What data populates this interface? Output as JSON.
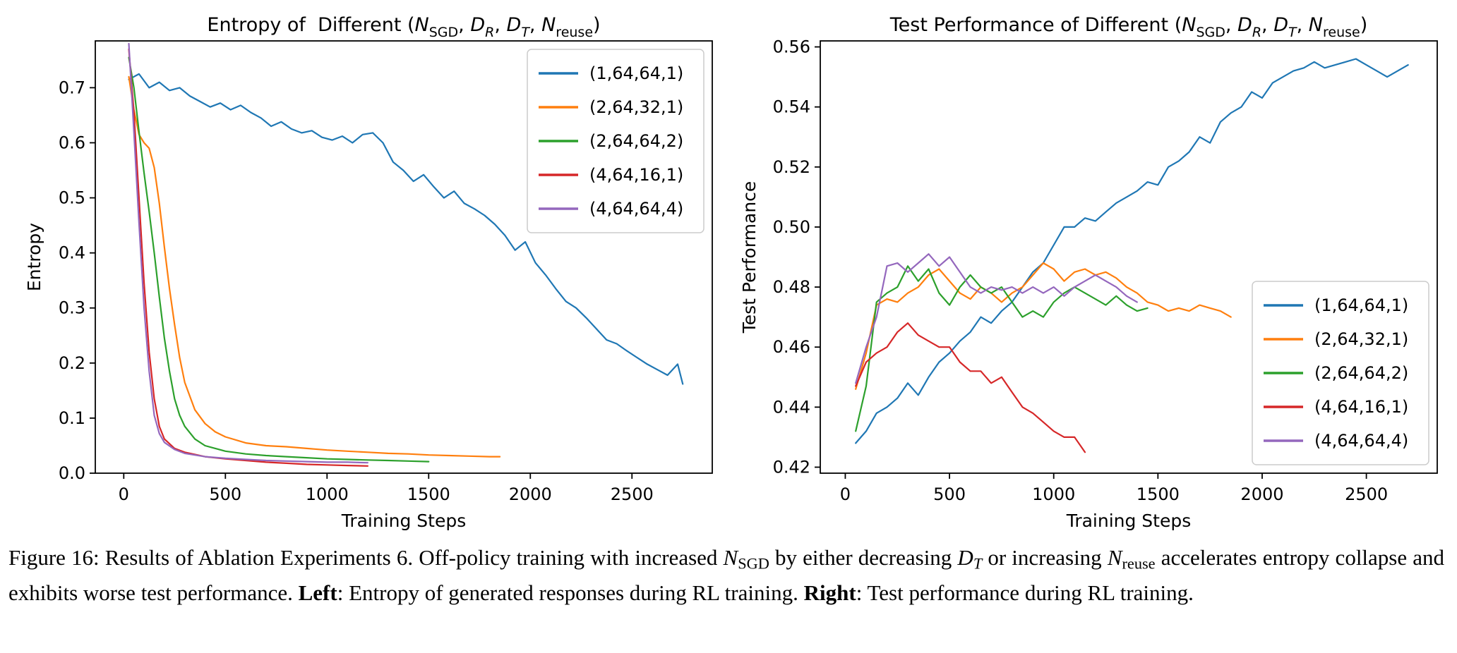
{
  "figure_caption": {
    "segments": [
      {
        "text": "Figure 16: Results of Ablation Experiments 6. Off-policy training with increased "
      },
      {
        "text": "N",
        "style": "italic"
      },
      {
        "text": "SGD",
        "style": "sub"
      },
      {
        "text": " by either decreasing "
      },
      {
        "text": "D",
        "style": "italic"
      },
      {
        "text": "T",
        "style": "italic-sub"
      },
      {
        "text": " or increasing "
      },
      {
        "text": "N",
        "style": "italic"
      },
      {
        "text": "reuse",
        "style": "sub"
      },
      {
        "text": " accelerates entropy collapse and exhibits worse test performance. "
      },
      {
        "text": "Left",
        "style": "bold"
      },
      {
        "text": ": Entropy of generated responses during RL training. "
      },
      {
        "text": "Right",
        "style": "bold"
      },
      {
        "text": ": Test performance during RL training."
      }
    ]
  },
  "chart_data": [
    {
      "type": "line",
      "title_segments": [
        {
          "text": "Entropy of  Different ("
        },
        {
          "text": "N",
          "style": "italic"
        },
        {
          "text": "SGD",
          "style": "sub"
        },
        {
          "text": ", "
        },
        {
          "text": "D",
          "style": "italic"
        },
        {
          "text": "R",
          "style": "italic-sub"
        },
        {
          "text": ", "
        },
        {
          "text": "D",
          "style": "italic"
        },
        {
          "text": "T",
          "style": "italic-sub"
        },
        {
          "text": ", "
        },
        {
          "text": "N",
          "style": "italic"
        },
        {
          "text": "reuse",
          "style": "sub"
        },
        {
          "text": ")"
        }
      ],
      "xlabel": "Training Steps",
      "ylabel": "Entropy",
      "xlim": [
        -140,
        2895
      ],
      "ylim": [
        0.0,
        0.785
      ],
      "xtick_values": [
        0,
        500,
        1000,
        1500,
        2000,
        2500
      ],
      "xtick_labels": [
        "0",
        "500",
        "1000",
        "1500",
        "2000",
        "2500"
      ],
      "ytick_values": [
        0.0,
        0.1,
        0.2,
        0.3,
        0.4,
        0.5,
        0.6,
        0.7
      ],
      "ytick_labels": [
        "0.0",
        "0.1",
        "0.2",
        "0.3",
        "0.4",
        "0.5",
        "0.6",
        "0.7"
      ],
      "legend_position": "upper-right",
      "series": [
        {
          "name": "(1,64,64,1)",
          "color": "#1f77b4",
          "x": [
            25,
            75,
            125,
            175,
            225,
            275,
            325,
            375,
            425,
            475,
            525,
            575,
            625,
            675,
            725,
            775,
            825,
            875,
            925,
            975,
            1025,
            1075,
            1125,
            1175,
            1225,
            1275,
            1325,
            1375,
            1425,
            1475,
            1525,
            1575,
            1625,
            1675,
            1725,
            1775,
            1825,
            1875,
            1925,
            1975,
            2025,
            2075,
            2125,
            2175,
            2225,
            2275,
            2325,
            2375,
            2425,
            2475,
            2525,
            2575,
            2625,
            2675,
            2725,
            2750
          ],
          "y": [
            0.715,
            0.725,
            0.7,
            0.71,
            0.695,
            0.7,
            0.685,
            0.675,
            0.665,
            0.672,
            0.66,
            0.668,
            0.655,
            0.645,
            0.63,
            0.638,
            0.625,
            0.618,
            0.622,
            0.61,
            0.605,
            0.612,
            0.6,
            0.615,
            0.618,
            0.6,
            0.565,
            0.55,
            0.53,
            0.542,
            0.52,
            0.5,
            0.512,
            0.49,
            0.48,
            0.468,
            0.452,
            0.432,
            0.405,
            0.42,
            0.382,
            0.36,
            0.335,
            0.312,
            0.3,
            0.282,
            0.262,
            0.242,
            0.235,
            0.222,
            0.21,
            0.198,
            0.188,
            0.178,
            0.198,
            0.162
          ]
        },
        {
          "name": "(2,64,32,1)",
          "color": "#ff7f0e",
          "x": [
            25,
            50,
            75,
            100,
            125,
            150,
            175,
            200,
            225,
            250,
            275,
            300,
            350,
            400,
            450,
            500,
            600,
            700,
            800,
            900,
            1000,
            1100,
            1200,
            1300,
            1400,
            1500,
            1600,
            1700,
            1800,
            1850
          ],
          "y": [
            0.72,
            0.66,
            0.615,
            0.6,
            0.59,
            0.555,
            0.49,
            0.41,
            0.335,
            0.27,
            0.21,
            0.165,
            0.115,
            0.09,
            0.075,
            0.066,
            0.055,
            0.05,
            0.048,
            0.045,
            0.042,
            0.04,
            0.038,
            0.036,
            0.035,
            0.033,
            0.032,
            0.031,
            0.03,
            0.03
          ]
        },
        {
          "name": "(2,64,64,2)",
          "color": "#2ca02c",
          "x": [
            25,
            50,
            75,
            100,
            125,
            150,
            175,
            200,
            225,
            250,
            275,
            300,
            350,
            400,
            500,
            600,
            700,
            800,
            900,
            1000,
            1100,
            1200,
            1300,
            1400,
            1500
          ],
          "y": [
            0.755,
            0.7,
            0.62,
            0.545,
            0.475,
            0.4,
            0.32,
            0.245,
            0.185,
            0.135,
            0.105,
            0.085,
            0.062,
            0.05,
            0.04,
            0.035,
            0.032,
            0.03,
            0.028,
            0.026,
            0.025,
            0.024,
            0.023,
            0.022,
            0.021
          ]
        },
        {
          "name": "(4,64,16,1)",
          "color": "#d62728",
          "x": [
            25,
            50,
            75,
            100,
            125,
            150,
            175,
            200,
            250,
            300,
            400,
            500,
            600,
            700,
            800,
            900,
            1000,
            1100,
            1200
          ],
          "y": [
            0.77,
            0.655,
            0.5,
            0.345,
            0.22,
            0.135,
            0.085,
            0.062,
            0.045,
            0.038,
            0.03,
            0.026,
            0.023,
            0.02,
            0.018,
            0.016,
            0.015,
            0.014,
            0.013
          ]
        },
        {
          "name": "(4,64,64,4)",
          "color": "#9467bd",
          "x": [
            25,
            50,
            75,
            100,
            125,
            150,
            175,
            200,
            250,
            300,
            400,
            500,
            600,
            700,
            800,
            900,
            1000,
            1100,
            1200
          ],
          "y": [
            0.78,
            0.62,
            0.455,
            0.3,
            0.185,
            0.105,
            0.072,
            0.056,
            0.043,
            0.036,
            0.03,
            0.027,
            0.025,
            0.023,
            0.022,
            0.021,
            0.02,
            0.02,
            0.019
          ]
        }
      ]
    },
    {
      "type": "line",
      "title_segments": [
        {
          "text": "Test Performance of Different ("
        },
        {
          "text": "N",
          "style": "italic"
        },
        {
          "text": "SGD",
          "style": "sub"
        },
        {
          "text": ", "
        },
        {
          "text": "D",
          "style": "italic"
        },
        {
          "text": "R",
          "style": "italic-sub"
        },
        {
          "text": ", "
        },
        {
          "text": "D",
          "style": "italic"
        },
        {
          "text": "T",
          "style": "italic-sub"
        },
        {
          "text": ", "
        },
        {
          "text": "N",
          "style": "italic"
        },
        {
          "text": "reuse",
          "style": "sub"
        },
        {
          "text": ")"
        }
      ],
      "xlabel": "Training Steps",
      "ylabel": "Test Performance",
      "xlim": [
        -120,
        2840
      ],
      "ylim": [
        0.418,
        0.562
      ],
      "xtick_values": [
        0,
        500,
        1000,
        1500,
        2000,
        2500
      ],
      "xtick_labels": [
        "0",
        "500",
        "1000",
        "1500",
        "2000",
        "2500"
      ],
      "ytick_values": [
        0.42,
        0.44,
        0.46,
        0.48,
        0.5,
        0.52,
        0.54,
        0.56
      ],
      "ytick_labels": [
        "0.42",
        "0.44",
        "0.46",
        "0.48",
        "0.50",
        "0.52",
        "0.54",
        "0.56"
      ],
      "legend_position": "lower-right",
      "series": [
        {
          "name": "(1,64,64,1)",
          "color": "#1f77b4",
          "x": [
            50,
            100,
            150,
            200,
            250,
            300,
            350,
            400,
            450,
            500,
            550,
            600,
            650,
            700,
            750,
            800,
            850,
            900,
            950,
            1000,
            1050,
            1100,
            1150,
            1200,
            1250,
            1300,
            1350,
            1400,
            1450,
            1500,
            1550,
            1600,
            1650,
            1700,
            1750,
            1800,
            1850,
            1900,
            1950,
            2000,
            2050,
            2100,
            2150,
            2200,
            2250,
            2300,
            2350,
            2400,
            2450,
            2500,
            2550,
            2600,
            2650,
            2700
          ],
          "y": [
            0.428,
            0.432,
            0.438,
            0.44,
            0.443,
            0.448,
            0.444,
            0.45,
            0.455,
            0.458,
            0.462,
            0.465,
            0.47,
            0.468,
            0.472,
            0.475,
            0.48,
            0.485,
            0.488,
            0.494,
            0.5,
            0.5,
            0.503,
            0.502,
            0.505,
            0.508,
            0.51,
            0.512,
            0.515,
            0.514,
            0.52,
            0.522,
            0.525,
            0.53,
            0.528,
            0.535,
            0.538,
            0.54,
            0.545,
            0.543,
            0.548,
            0.55,
            0.552,
            0.553,
            0.555,
            0.553,
            0.554,
            0.555,
            0.556,
            0.554,
            0.552,
            0.55,
            0.552,
            0.554
          ]
        },
        {
          "name": "(2,64,32,1)",
          "color": "#ff7f0e",
          "x": [
            50,
            100,
            150,
            200,
            250,
            300,
            350,
            400,
            450,
            500,
            550,
            600,
            650,
            700,
            750,
            800,
            850,
            900,
            950,
            1000,
            1050,
            1100,
            1150,
            1200,
            1250,
            1300,
            1350,
            1400,
            1450,
            1500,
            1550,
            1600,
            1650,
            1700,
            1750,
            1800,
            1850
          ],
          "y": [
            0.446,
            0.458,
            0.474,
            0.476,
            0.475,
            0.478,
            0.48,
            0.484,
            0.486,
            0.482,
            0.478,
            0.476,
            0.48,
            0.478,
            0.475,
            0.478,
            0.48,
            0.484,
            0.488,
            0.486,
            0.482,
            0.485,
            0.486,
            0.484,
            0.485,
            0.483,
            0.48,
            0.478,
            0.475,
            0.474,
            0.472,
            0.473,
            0.472,
            0.474,
            0.473,
            0.472,
            0.47
          ]
        },
        {
          "name": "(2,64,64,2)",
          "color": "#2ca02c",
          "x": [
            50,
            100,
            150,
            200,
            250,
            300,
            350,
            400,
            450,
            500,
            550,
            600,
            650,
            700,
            750,
            800,
            850,
            900,
            950,
            1000,
            1050,
            1100,
            1150,
            1200,
            1250,
            1300,
            1350,
            1400,
            1450
          ],
          "y": [
            0.432,
            0.447,
            0.475,
            0.478,
            0.48,
            0.487,
            0.482,
            0.486,
            0.478,
            0.474,
            0.48,
            0.484,
            0.48,
            0.478,
            0.48,
            0.475,
            0.47,
            0.472,
            0.47,
            0.475,
            0.478,
            0.48,
            0.478,
            0.476,
            0.474,
            0.477,
            0.474,
            0.472,
            0.473
          ]
        },
        {
          "name": "(4,64,16,1)",
          "color": "#d62728",
          "x": [
            50,
            100,
            150,
            200,
            250,
            300,
            350,
            400,
            450,
            500,
            550,
            600,
            650,
            700,
            750,
            800,
            850,
            900,
            950,
            1000,
            1050,
            1100,
            1150
          ],
          "y": [
            0.447,
            0.455,
            0.458,
            0.46,
            0.465,
            0.468,
            0.464,
            0.462,
            0.46,
            0.46,
            0.455,
            0.452,
            0.452,
            0.448,
            0.45,
            0.445,
            0.44,
            0.438,
            0.435,
            0.432,
            0.43,
            0.43,
            0.425
          ]
        },
        {
          "name": "(4,64,64,4)",
          "color": "#9467bd",
          "x": [
            50,
            100,
            150,
            200,
            250,
            300,
            350,
            400,
            450,
            500,
            550,
            600,
            650,
            700,
            750,
            800,
            850,
            900,
            950,
            1000,
            1050,
            1100,
            1150,
            1200,
            1250,
            1300,
            1350,
            1400
          ],
          "y": [
            0.448,
            0.46,
            0.47,
            0.487,
            0.488,
            0.485,
            0.488,
            0.491,
            0.487,
            0.49,
            0.485,
            0.48,
            0.478,
            0.48,
            0.479,
            0.48,
            0.478,
            0.48,
            0.478,
            0.48,
            0.477,
            0.48,
            0.482,
            0.484,
            0.482,
            0.48,
            0.477,
            0.475
          ]
        }
      ]
    }
  ]
}
